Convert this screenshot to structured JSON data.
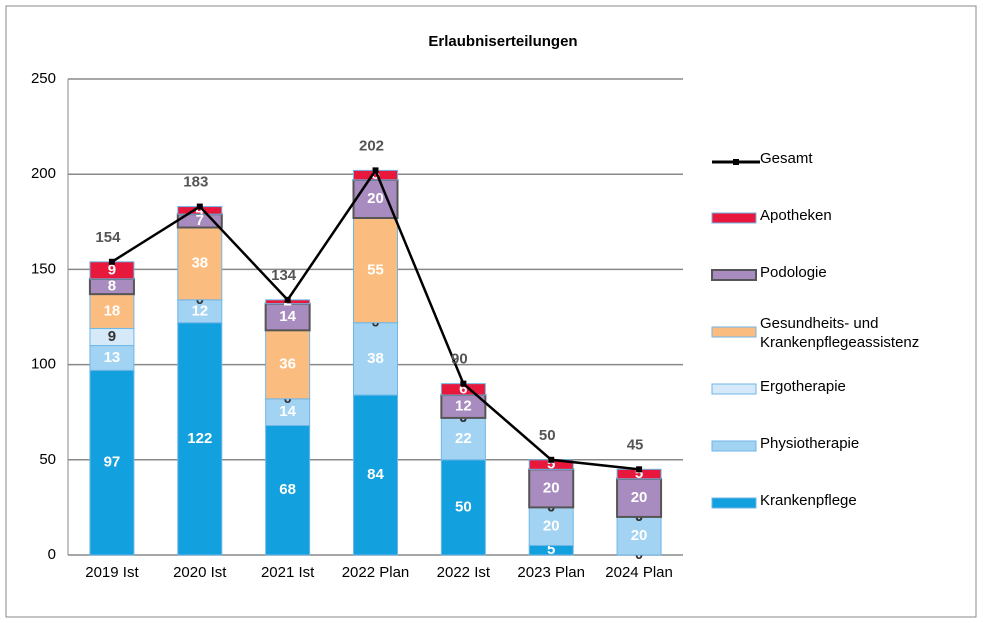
{
  "chart_data": {
    "type": "bar",
    "stacked": true,
    "title": "Erlaubniserteilungen",
    "categories": [
      "2019 Ist",
      "2020 Ist",
      "2021 Ist",
      "2022 Plan",
      "2022 Ist",
      "2023 Plan",
      "2024 Plan"
    ],
    "series": [
      {
        "name": "Krankenpflege",
        "color": "#12a0de",
        "values": [
          97,
          122,
          68,
          84,
          50,
          5,
          0
        ]
      },
      {
        "name": "Physiotherapie",
        "color": "#a3d3f3",
        "values": [
          13,
          12,
          14,
          38,
          22,
          20,
          20
        ]
      },
      {
        "name": "Ergotherapie",
        "color": "#d6e9f8",
        "values": [
          9,
          0,
          0,
          0,
          0,
          0,
          0
        ]
      },
      {
        "name": "Gesundheits- und Krankenpflegeassistenz",
        "color": "#fbbd7f",
        "values": [
          18,
          38,
          36,
          55,
          0,
          0,
          0
        ]
      },
      {
        "name": "Podologie",
        "color": "#a98cbf",
        "values": [
          8,
          7,
          14,
          20,
          12,
          20,
          20
        ]
      },
      {
        "name": "Apotheken",
        "color": "#e8173c",
        "values": [
          9,
          4,
          2,
          5,
          6,
          5,
          5
        ]
      },
      {
        "name": "Gesamt",
        "type": "line",
        "color": "#000000",
        "values": [
          154,
          183,
          134,
          202,
          90,
          50,
          45
        ]
      }
    ],
    "ylim": [
      0,
      250
    ],
    "yticks": [
      0,
      50,
      100,
      150,
      200,
      250
    ],
    "grid": true,
    "legend": "right"
  }
}
